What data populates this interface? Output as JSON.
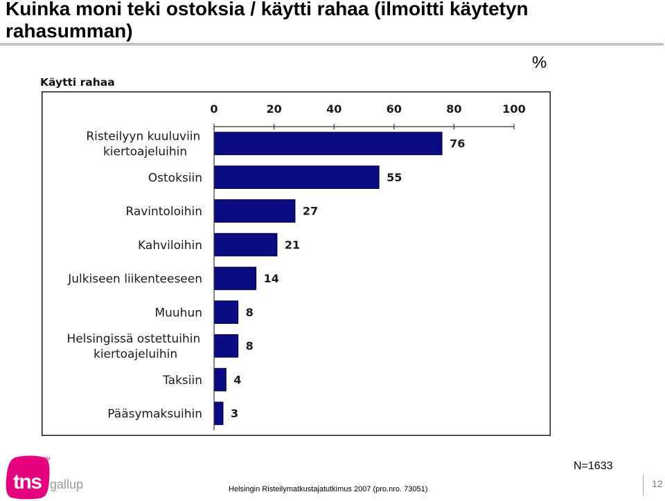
{
  "slide": {
    "title": "Kuinka moni teki ostoksia / käytti rahaa (ilmoitti käytetyn rahasumman)",
    "unit_label": "%",
    "sample_size": "N=1633",
    "source": "Helsingin Risteilymatkustajatutkimus 2007 (pro.nro. 73051)",
    "page_number": "12"
  },
  "logo": {
    "brand": "tns",
    "trademark": "TM",
    "sub_brand": "gallup",
    "brand_color": "#e6007e",
    "sub_brand_color": "#9b9b9b"
  },
  "colors": {
    "bar_fill": "#0c0c82",
    "bar_outline": "#000033",
    "rule": "#c4c4c4"
  },
  "chart_data": {
    "type": "bar",
    "orientation": "horizontal",
    "title": "Käytti rahaa",
    "categories": [
      "Risteilyyn kuuluviin kiertoajeluihin",
      "Ostoksiin",
      "Ravintoloihin",
      "Kahviloihin",
      "Julkiseen liikenteeseen",
      "Muuhun",
      "Helsingissä ostettuihin kiertoajeluihin",
      "Taksiin",
      "Pääsymaksuihin"
    ],
    "values": [
      76,
      55,
      27,
      21,
      14,
      8,
      8,
      4,
      3
    ],
    "xlim": [
      0,
      100
    ],
    "xticks": [
      0,
      20,
      40,
      60,
      80,
      100
    ],
    "x_axis_position": "top",
    "grid": false
  }
}
